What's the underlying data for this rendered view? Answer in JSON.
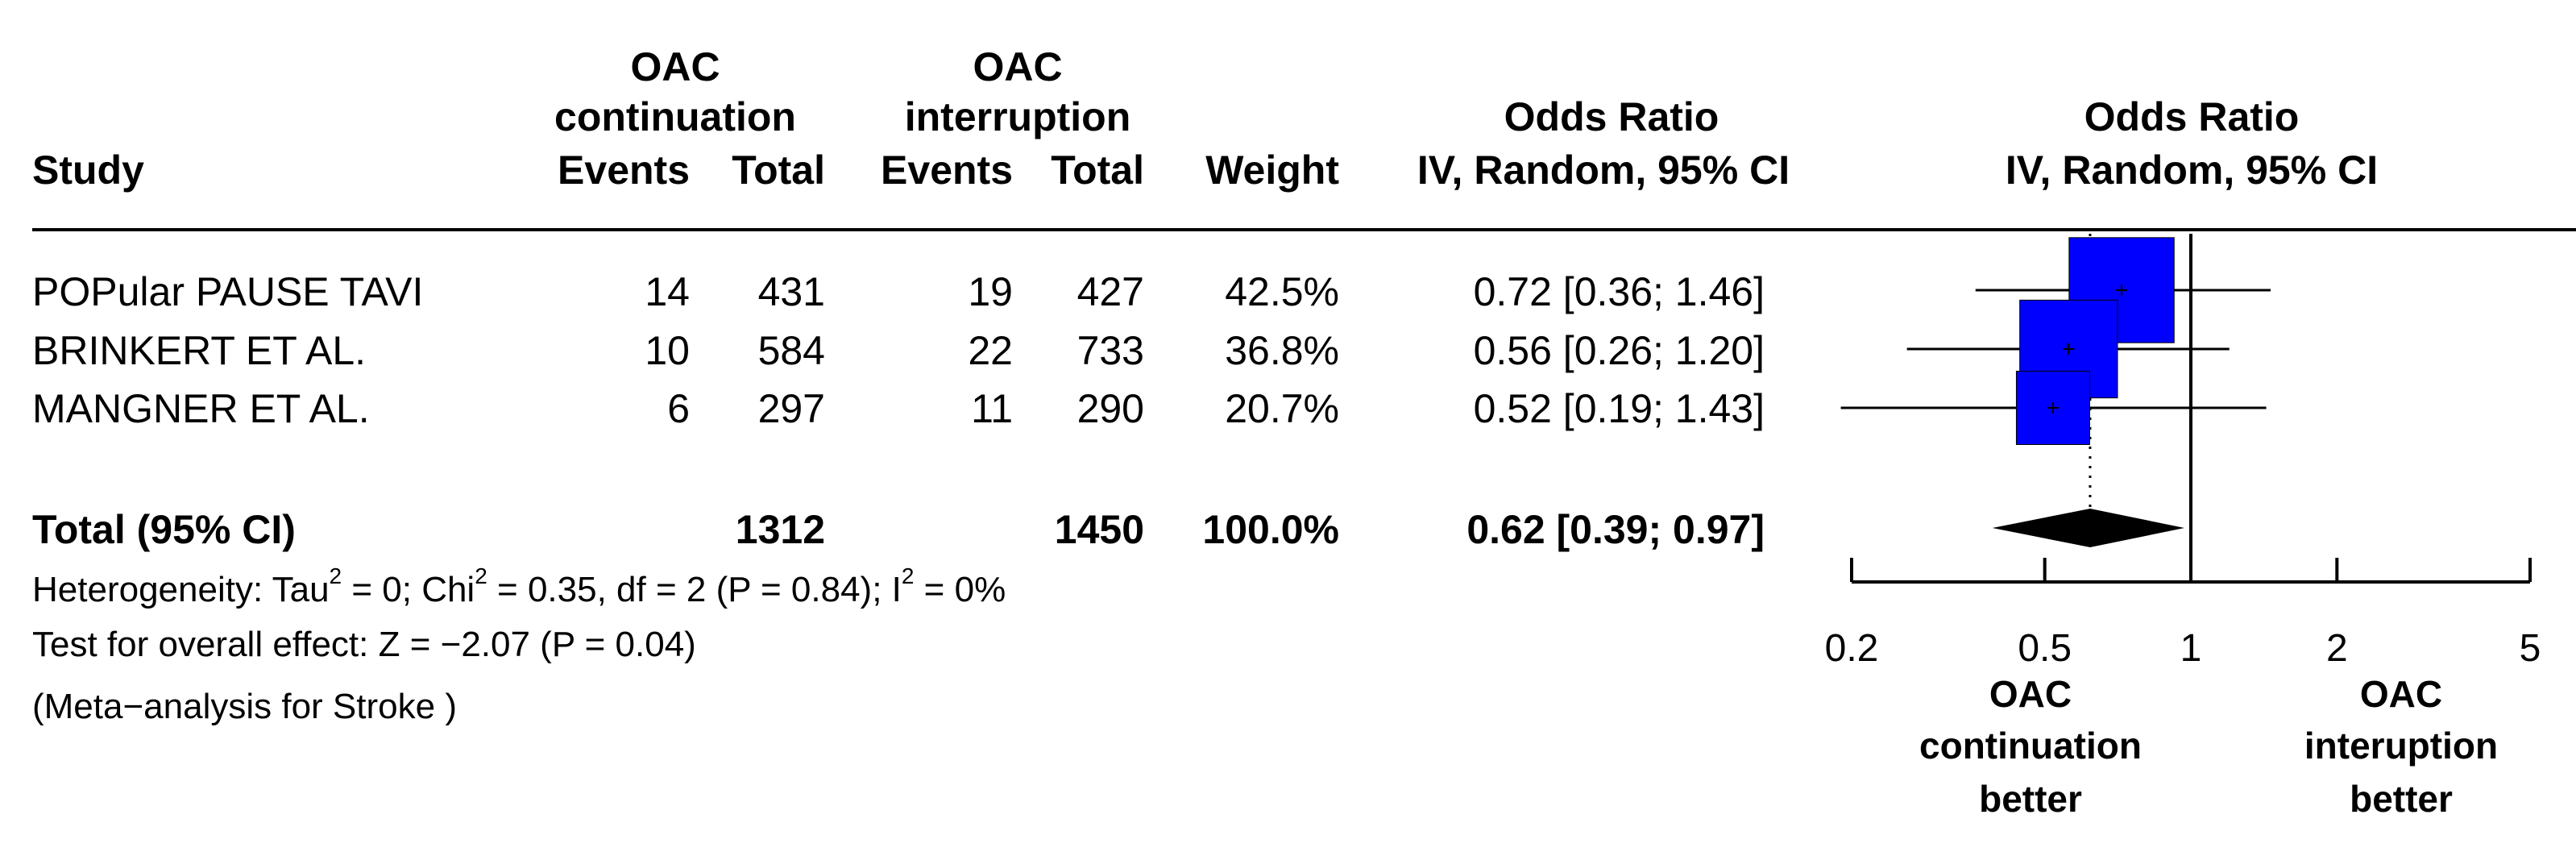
{
  "header": {
    "study": "Study",
    "group1_line1": "OAC",
    "group1_line2": "continuation",
    "group2_line1": "OAC",
    "group2_line2": "interruption",
    "events1": "Events",
    "total1": "Total",
    "events2": "Events",
    "total2": "Total",
    "weight": "Weight",
    "or_table_line1": "Odds Ratio",
    "or_table_line2": "IV, Random, 95% CI",
    "or_plot_line1": "Odds Ratio",
    "or_plot_line2": "IV, Random, 95% CI"
  },
  "studies": [
    {
      "name": "POPular PAUSE TAVI",
      "events1": "14",
      "total1": "431",
      "events2": "19",
      "total2": "427",
      "weight": "42.5%",
      "ci_text": "0.72 [0.36; 1.46]"
    },
    {
      "name": "BRINKERT ET AL.",
      "events1": "10",
      "total1": "584",
      "events2": "22",
      "total2": "733",
      "weight": "36.8%",
      "ci_text": "0.56 [0.26; 1.20]"
    },
    {
      "name": "MANGNER ET AL.",
      "events1": "6",
      "total1": "297",
      "events2": "11",
      "total2": "290",
      "weight": "20.7%",
      "ci_text": "0.52 [0.19; 1.43]"
    }
  ],
  "total": {
    "label": "Total (95% CI)",
    "total1": "1312",
    "total2": "1450",
    "weight": "100.0%",
    "ci_text": "0.62 [0.39; 0.97]"
  },
  "footer": {
    "het_a": "Heterogeneity: Tau",
    "het_sup1": "2",
    "het_b": " = 0; Chi",
    "het_sup2": "2",
    "het_c": " = 0.35, df = 2 (P = 0.84); I",
    "het_sup3": "2",
    "het_d": " = 0%",
    "overall": "Test for overall effect: Z = −2.07 (P = 0.04)",
    "note": "(Meta−analysis for Stroke )"
  },
  "axis": {
    "left_label": [
      "OAC",
      "continuation",
      "better"
    ],
    "right_label": [
      "OAC",
      "interuption",
      "better"
    ]
  },
  "chart_data": {
    "type": "forest",
    "scale": "log",
    "xlim": [
      0.2,
      5
    ],
    "ticks": [
      0.2,
      0.5,
      1,
      2,
      5
    ],
    "tick_labels": [
      "0.2",
      "0.5",
      "1",
      "2",
      "5"
    ],
    "reference_line": 1,
    "pooled_reference_line": 0.62,
    "box_color": "#0000ff",
    "diamond_color": "#000000",
    "studies": [
      {
        "name": "POPular PAUSE TAVI",
        "or": 0.72,
        "lower": 0.36,
        "upper": 1.46,
        "weight": 42.5
      },
      {
        "name": "BRINKERT ET AL.",
        "or": 0.56,
        "lower": 0.26,
        "upper": 1.2,
        "weight": 36.8
      },
      {
        "name": "MANGNER ET AL.",
        "or": 0.52,
        "lower": 0.19,
        "upper": 1.43,
        "weight": 20.7
      }
    ],
    "pooled": {
      "or": 0.62,
      "lower": 0.39,
      "upper": 0.97
    }
  }
}
